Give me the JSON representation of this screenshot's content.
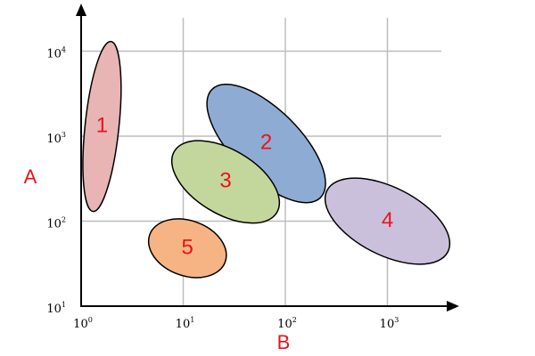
{
  "axes": {
    "x_label": "B",
    "y_label": "A",
    "label_color": "#e8141b",
    "x_scale": "log",
    "y_scale": "log",
    "x_range": [
      1,
      3000
    ],
    "y_range": [
      10,
      30000
    ],
    "grid": true,
    "x_ticks": [
      {
        "value": 1,
        "base": "10",
        "exp": "0"
      },
      {
        "value": 10,
        "base": "10",
        "exp": "1"
      },
      {
        "value": 100,
        "base": "10",
        "exp": "2"
      },
      {
        "value": 1000,
        "base": "10",
        "exp": "3"
      }
    ],
    "y_ticks": [
      {
        "value": 10,
        "base": "10",
        "exp": "1"
      },
      {
        "value": 100,
        "base": "10",
        "exp": "2"
      },
      {
        "value": 1000,
        "base": "10",
        "exp": "3"
      },
      {
        "value": 10000,
        "base": "10",
        "exp": "4"
      }
    ]
  },
  "regions": [
    {
      "label": "1",
      "fill": "#e8b4b4",
      "label_color": "#e8141b",
      "b_center": 1.6,
      "a_center": 1300,
      "b_span": [
        1,
        2.4
      ],
      "a_span": [
        100,
        20000
      ]
    },
    {
      "label": "2",
      "fill": "#8eacd3",
      "label_color": "#e8141b",
      "b_center": 65,
      "a_center": 820,
      "b_span": [
        20,
        250
      ],
      "a_span": [
        190,
        3200
      ]
    },
    {
      "label": "3",
      "fill": "#c3d79d",
      "label_color": "#e8141b",
      "b_center": 26,
      "a_center": 290,
      "b_span": [
        9,
        80
      ],
      "a_span": [
        110,
        750
      ]
    },
    {
      "label": "4",
      "fill": "#cbc0dc",
      "label_color": "#e8141b",
      "b_center": 1000,
      "a_center": 100,
      "b_span": [
        280,
        3200
      ],
      "a_span": [
        45,
        250
      ]
    },
    {
      "label": "5",
      "fill": "#f6b384",
      "label_color": "#e8141b",
      "b_center": 11,
      "a_center": 48,
      "b_span": [
        6,
        25
      ],
      "a_span": [
        25,
        95
      ]
    }
  ]
}
